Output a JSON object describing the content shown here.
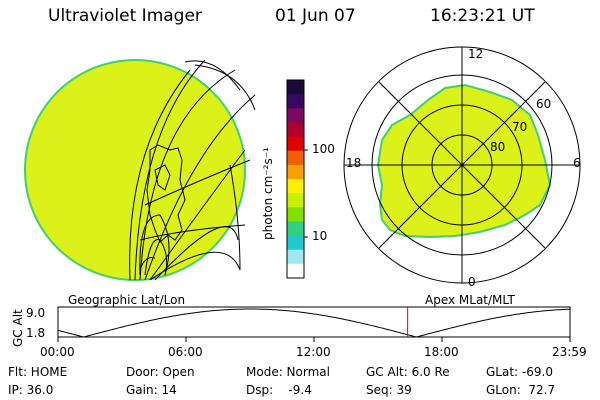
{
  "header": {
    "instrument": "Ultraviolet Imager",
    "date": "01 Jun 07",
    "time": "16:23:21 UT"
  },
  "colorbar": {
    "unit_label": "photon cm⁻²s⁻¹",
    "tick_100": "100",
    "tick_10": "10",
    "colors": [
      "#1a0a3a",
      "#3a0860",
      "#7a0a60",
      "#b00030",
      "#e00000",
      "#f06000",
      "#f8a000",
      "#fff000",
      "#c8f000",
      "#80e000",
      "#30d080",
      "#20c8d0",
      "#a0e8f0",
      "#ffffff"
    ]
  },
  "polar": {
    "label_12": "12",
    "label_18": "18",
    "label_6": "6",
    "label_0": "0",
    "label_60": "60",
    "label_70": "70",
    "label_80": "80"
  },
  "panels": {
    "left_caption": "Geographic Lat/Lon",
    "right_caption": "Apex MLat/MLT"
  },
  "altitude_plot": {
    "axis_label": "GC Alt",
    "y_top": "9.0",
    "y_bottom": "1.8",
    "x_ticks": [
      "00:00",
      "06:00",
      "12:00",
      "18:00",
      "23:59"
    ],
    "marker_time_hours": 16.39
  },
  "status": {
    "flt": "Flt: HOME",
    "door": "Door: Open",
    "mode": "Mode: Normal",
    "gc_alt": "GC Alt: 6.0 Re",
    "glat": "GLat: -69.0",
    "ip": "IP: 36.0",
    "gain": "Gain: 14",
    "dsp": "Dsp:    -9.4",
    "seq": "Seq: 39",
    "glon": "GLon:  72.7"
  },
  "colors": {
    "aurora_fill": "#dcf019",
    "edge": "#40d070",
    "marker": "#e00000"
  }
}
